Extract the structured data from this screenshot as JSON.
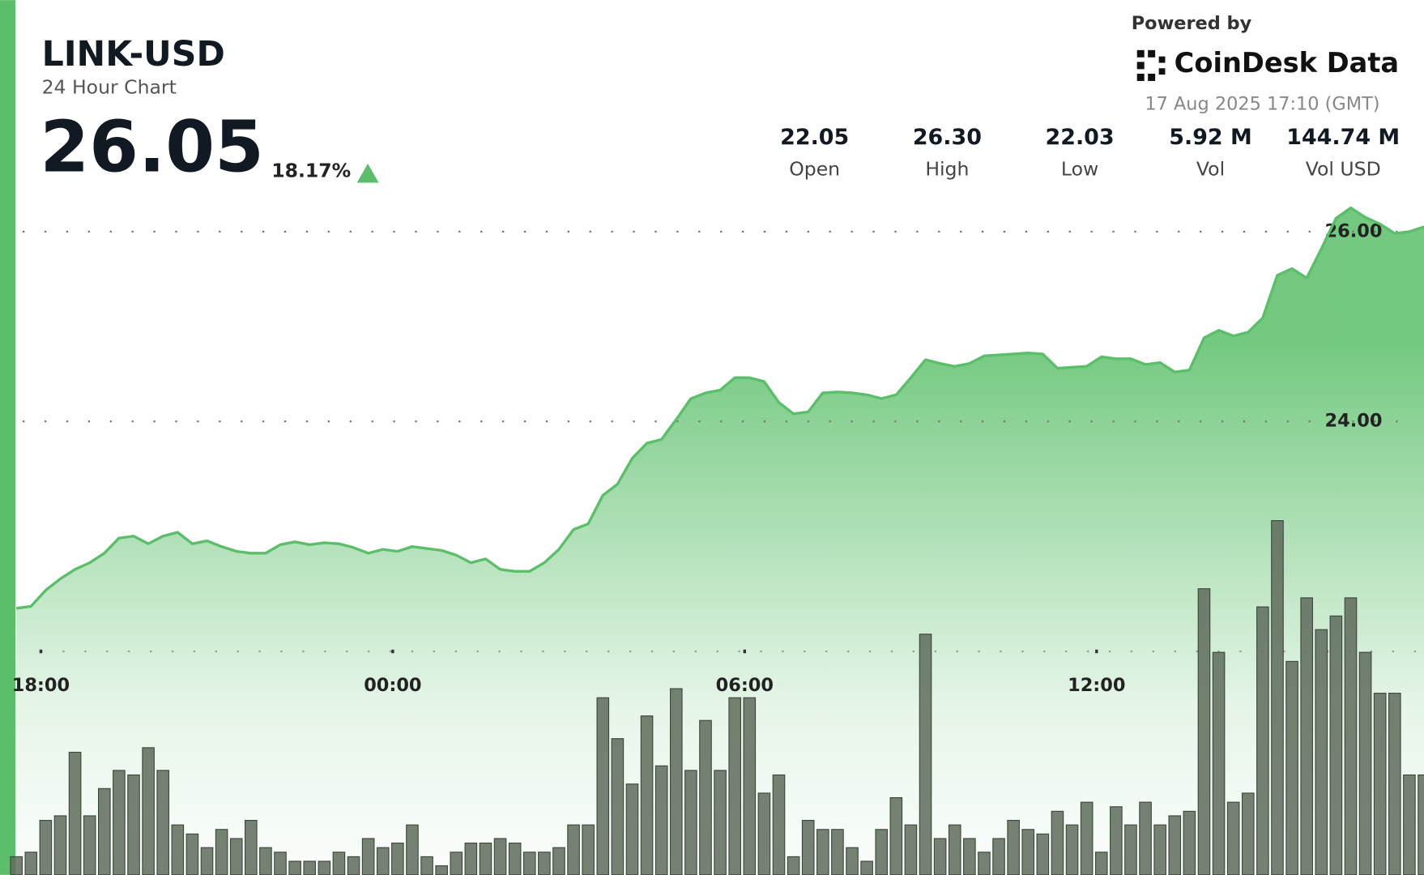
{
  "header": {
    "symbol": "LINK-USD",
    "subtitle": "24 Hour Chart",
    "price": "26.05",
    "change": "18.17%",
    "powered_by": "Powered by",
    "brand": "CoinDesk Data",
    "timestamp": "17 Aug 2025 17:10 (GMT)"
  },
  "stats": [
    {
      "value": "22.05",
      "label": "Open"
    },
    {
      "value": "26.30",
      "label": "High"
    },
    {
      "value": "22.03",
      "label": "Low"
    },
    {
      "value": "5.92 M",
      "label": "Vol"
    },
    {
      "value": "144.74 M",
      "label": "Vol USD"
    }
  ],
  "chart_data": [
    {
      "type": "line",
      "color": "#5bbf6a",
      "xlim": [
        0,
        96
      ],
      "xticks": [
        {
          "value": 1.67,
          "label": "18:00"
        },
        {
          "value": 25.67,
          "label": "00:00"
        },
        {
          "value": 49.67,
          "label": "06:00"
        },
        {
          "value": 73.67,
          "label": "12:00"
        }
      ],
      "ylim": [
        19.22,
        28.44
      ],
      "yticks": [
        {
          "value": 24,
          "label": "24.00"
        },
        {
          "value": 26,
          "label": "26.00"
        }
      ],
      "grid": true,
      "values": [
        22.03,
        22.05,
        22.22,
        22.34,
        22.44,
        22.51,
        22.61,
        22.77,
        22.79,
        22.71,
        22.79,
        22.83,
        22.71,
        22.74,
        22.68,
        22.63,
        22.61,
        22.61,
        22.7,
        22.73,
        22.7,
        22.72,
        22.71,
        22.67,
        22.61,
        22.65,
        22.63,
        22.68,
        22.66,
        22.64,
        22.59,
        22.51,
        22.55,
        22.44,
        22.42,
        22.42,
        22.51,
        22.65,
        22.86,
        22.92,
        23.22,
        23.34,
        23.61,
        23.77,
        23.81,
        24.02,
        24.24,
        24.3,
        24.33,
        24.46,
        24.46,
        24.42,
        24.2,
        24.08,
        24.1,
        24.3,
        24.31,
        24.3,
        24.28,
        24.24,
        24.28,
        24.46,
        24.65,
        24.61,
        24.58,
        24.61,
        24.69,
        24.7,
        24.71,
        24.72,
        24.71,
        24.56,
        24.57,
        24.58,
        24.68,
        24.66,
        24.66,
        24.6,
        24.62,
        24.52,
        24.54,
        24.88,
        24.96,
        24.9,
        24.94,
        25.09,
        25.54,
        25.61,
        25.51,
        25.82,
        26.14,
        26.25,
        26.15,
        26.08,
        25.98,
        26.0,
        26.05
      ]
    },
    {
      "type": "bar",
      "color": "#5e6b5b",
      "xlim": [
        0,
        96
      ],
      "ylim": [
        0,
        500
      ],
      "values": [
        20,
        25,
        60,
        65,
        135,
        65,
        95,
        115,
        110,
        140,
        115,
        55,
        45,
        30,
        50,
        40,
        60,
        30,
        25,
        15,
        15,
        15,
        25,
        20,
        40,
        30,
        35,
        55,
        20,
        10,
        25,
        35,
        35,
        40,
        35,
        25,
        25,
        30,
        55,
        55,
        195,
        150,
        100,
        175,
        120,
        205,
        115,
        170,
        115,
        195,
        195,
        90,
        110,
        20,
        60,
        50,
        50,
        30,
        15,
        50,
        85,
        55,
        265,
        40,
        55,
        40,
        25,
        40,
        60,
        50,
        45,
        70,
        55,
        80,
        25,
        75,
        55,
        80,
        55,
        65,
        70,
        315,
        245,
        80,
        90,
        295,
        390,
        235,
        305,
        270,
        285,
        305,
        245,
        200,
        200,
        110,
        110
      ]
    }
  ]
}
